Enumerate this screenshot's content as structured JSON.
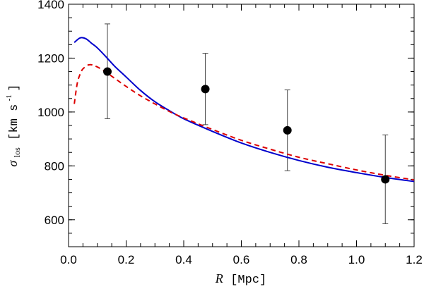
{
  "chart_data": {
    "type": "scatter",
    "xlabel": {
      "symbol": "R",
      "unit": "[Mpc]"
    },
    "ylabel": {
      "symbol": "σ",
      "subscript": "los",
      "unit_prefix": "[km s",
      "unit_exp": "-1",
      "unit_suffix": "]"
    },
    "xlim": [
      0.0,
      1.2
    ],
    "ylim": [
      500,
      1400
    ],
    "xticks": [
      0.0,
      0.2,
      0.4,
      0.6,
      0.8,
      1.0,
      1.2
    ],
    "xtick_labels": [
      "0.0",
      "0.2",
      "0.4",
      "0.6",
      "0.8",
      "1.0",
      "1.2"
    ],
    "yticks": [
      600,
      800,
      1000,
      1200,
      1400
    ],
    "ytick_labels": [
      "600",
      "800",
      "1000",
      "1200",
      "1400"
    ],
    "points": {
      "name": "data",
      "color": "#000000",
      "x": [
        0.135,
        0.475,
        0.76,
        1.1
      ],
      "y": [
        1150,
        1085,
        932,
        750
      ],
      "err_low": [
        1150,
        1085,
        932,
        750
      ],
      "err_high": [
        1150,
        1085,
        932,
        750
      ],
      "yerr_low": [
        175,
        132,
        150,
        165
      ],
      "yerr_high": [
        177,
        133,
        150,
        165
      ]
    },
    "series": [
      {
        "name": "model-solid",
        "style": "solid",
        "color": "#0000cc",
        "x": [
          0.02,
          0.04,
          0.06,
          0.08,
          0.1,
          0.13,
          0.16,
          0.2,
          0.25,
          0.3,
          0.35,
          0.4,
          0.5,
          0.6,
          0.7,
          0.8,
          0.9,
          1.0,
          1.1,
          1.2
        ],
        "y": [
          1258,
          1275,
          1272,
          1255,
          1238,
          1205,
          1170,
          1130,
          1080,
          1038,
          1005,
          975,
          928,
          885,
          850,
          820,
          795,
          775,
          757,
          742
        ]
      },
      {
        "name": "model-dashed",
        "style": "dashed",
        "color": "#dd0000",
        "x": [
          0.02,
          0.03,
          0.04,
          0.05,
          0.07,
          0.09,
          0.12,
          0.16,
          0.2,
          0.25,
          0.3,
          0.35,
          0.4,
          0.5,
          0.6,
          0.7,
          0.8,
          0.9,
          1.0,
          1.1,
          1.2
        ],
        "y": [
          1030,
          1105,
          1140,
          1160,
          1175,
          1172,
          1155,
          1125,
          1095,
          1060,
          1030,
          1002,
          978,
          935,
          895,
          862,
          832,
          808,
          785,
          765,
          748
        ]
      }
    ]
  }
}
